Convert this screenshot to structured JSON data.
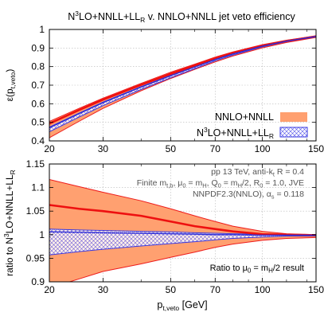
{
  "chart_data": [
    {
      "type": "line",
      "title": "N³LO+NNLL+LL_R v. NNLO+NNLL jet veto efficiency",
      "title_parts": {
        "a": "N",
        "b": "3",
        "c": "LO+NNLL+LL",
        "d": "R",
        "e": " v. NNLO+NNLL jet veto efficiency"
      },
      "xlabel_parts": {
        "a": "p",
        "b": "t,veto",
        "c": " [GeV]"
      },
      "ylabel_parts": {
        "a": "ε(p",
        "b": "t,veto",
        "c": ")"
      },
      "x_scale": "log",
      "xlim": [
        20,
        150
      ],
      "ylim": [
        0.4,
        1.0
      ],
      "xticks": [
        "20",
        "30",
        "50",
        "70",
        "100",
        "150"
      ],
      "xtick_values": [
        20,
        30,
        50,
        70,
        100,
        150
      ],
      "yticks": [
        "0.4",
        "0.5",
        "0.6",
        "0.7",
        "0.8",
        "0.9",
        "1"
      ],
      "ytick_values": [
        0.4,
        0.5,
        0.6,
        0.7,
        0.8,
        0.9,
        1.0
      ],
      "grid": true,
      "legend_position": "bottom-right",
      "x": [
        20,
        25,
        30,
        40,
        50,
        60,
        70,
        80,
        100,
        120,
        150
      ],
      "series": [
        {
          "name": "NNLO+NNLL",
          "style": "band",
          "color": "#ffa070",
          "central": [
            0.493,
            0.566,
            0.622,
            0.702,
            0.761,
            0.806,
            0.843,
            0.872,
            0.912,
            0.938,
            0.962
          ],
          "low": [
            0.417,
            0.505,
            0.575,
            0.67,
            0.736,
            0.785,
            0.825,
            0.857,
            0.901,
            0.93,
            0.957
          ],
          "high": [
            0.505,
            0.575,
            0.63,
            0.71,
            0.77,
            0.813,
            0.851,
            0.879,
            0.918,
            0.942,
            0.966
          ]
        },
        {
          "name_parts": {
            "a": "N",
            "b": "3",
            "c": "LO+NNLL+LL",
            "d": "R"
          },
          "style": "hatched band",
          "color": "#3a3ae0",
          "central": [
            0.47,
            0.546,
            0.606,
            0.69,
            0.751,
            0.798,
            0.838,
            0.868,
            0.91,
            0.937,
            0.962
          ],
          "low": [
            0.449,
            0.528,
            0.59,
            0.677,
            0.74,
            0.789,
            0.831,
            0.862,
            0.906,
            0.934,
            0.96
          ],
          "high": [
            0.474,
            0.549,
            0.609,
            0.692,
            0.753,
            0.8,
            0.84,
            0.87,
            0.911,
            0.938,
            0.963
          ]
        }
      ]
    },
    {
      "type": "line",
      "ylabel_parts": {
        "a": "ratio to N",
        "b": "3",
        "c": "LO+NNLL+LL",
        "d": "R"
      },
      "x_scale": "log",
      "xlim": [
        20,
        150
      ],
      "ylim": [
        0.9,
        1.15
      ],
      "xticks": [
        "20",
        "30",
        "50",
        "70",
        "100",
        "150"
      ],
      "xtick_values": [
        20,
        30,
        50,
        70,
        100,
        150
      ],
      "yticks": [
        "0.9",
        "0.95",
        "1",
        "1.05",
        "1.1",
        "1.15"
      ],
      "ytick_values": [
        0.9,
        0.95,
        1.0,
        1.05,
        1.1,
        1.15
      ],
      "grid": true,
      "x": [
        20,
        25,
        30,
        40,
        50,
        60,
        70,
        80,
        100,
        120,
        150
      ],
      "series": [
        {
          "name": "NNLO+NNLL",
          "style": "band",
          "color": "#ffa070",
          "central": [
            1.063,
            1.055,
            1.05,
            1.04,
            1.028,
            1.018,
            1.012,
            1.007,
            1.001,
            1.0,
            0.999
          ],
          "low": [
            0.887,
            0.906,
            0.922,
            0.938,
            0.952,
            0.963,
            0.973,
            0.98,
            0.988,
            0.992,
            0.994
          ],
          "high": [
            1.117,
            1.102,
            1.09,
            1.072,
            1.055,
            1.04,
            1.028,
            1.018,
            1.007,
            1.002,
            1.0
          ]
        },
        {
          "name": "N3LO+NNLL+LL_R",
          "style": "hatched band",
          "color": "#3a3ae0",
          "central": [
            1.006,
            1.005,
            1.004,
            1.003,
            1.002,
            1.001,
            1.0,
            1.0,
            0.999,
            0.999,
            0.999
          ],
          "low": [
            0.957,
            0.964,
            0.969,
            0.976,
            0.981,
            0.985,
            0.989,
            0.992,
            0.995,
            0.997,
            0.997
          ],
          "high": [
            1.012,
            1.01,
            1.009,
            1.007,
            1.006,
            1.004,
            1.003,
            1.002,
            1.001,
            1.0,
            1.0
          ]
        }
      ],
      "annotation_lines": [
        {
          "a": "pp 13 TeV, anti-k",
          "b": "t",
          "c": " R = 0.4"
        },
        {
          "a": "Finite m",
          "b": "t,b",
          "c": ", μ",
          "d": "0",
          "e": " = m",
          "f": "H",
          "g": ", Q",
          "h": "0",
          "i": " = m",
          "j": "H",
          "k": "/2, R",
          "l": "0",
          "m": " = 1.0, JVE"
        },
        {
          "a": "NNPDF2.3(NNLO), α",
          "b": "s",
          "c": " = 0.118"
        }
      ],
      "ratio_note": {
        "a": "Ratio to μ",
        "b": "0",
        "c": " = m",
        "d": "H",
        "e": "/2 result"
      }
    }
  ]
}
